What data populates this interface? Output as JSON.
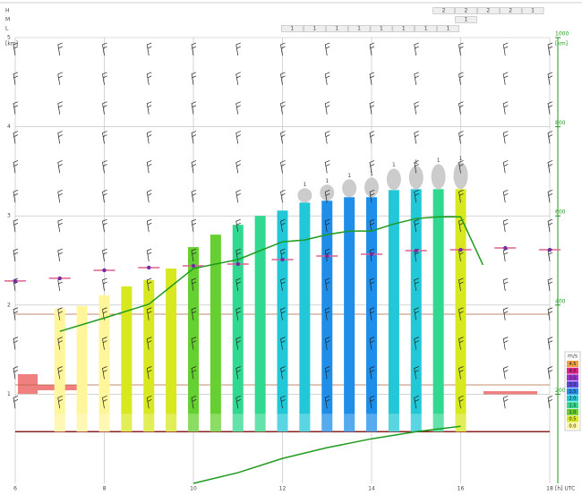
{
  "levels": [
    "H",
    "M",
    "L"
  ],
  "cloud_cover": {
    "H": [
      "2",
      "2",
      "2",
      "2",
      "1"
    ],
    "M": [
      "1"
    ],
    "L": [
      "1",
      "1",
      "1",
      "1",
      "1",
      "1",
      "1",
      "1"
    ]
  },
  "chart_data": {
    "type": "bar",
    "y_label": "[km]",
    "x_label": "[h] UTC",
    "y2_label": "[km]",
    "xlim": [
      6,
      18
    ],
    "xticks": [
      6,
      8,
      10,
      12,
      14,
      16,
      18
    ],
    "ylim": [
      0,
      5
    ],
    "yticks": [
      1,
      2,
      3,
      4,
      5
    ],
    "y2lim": [
      0,
      1000
    ],
    "y2ticks": [
      200,
      400,
      600,
      800,
      1000
    ],
    "ground": 0.58,
    "x": [
      7,
      7.5,
      8,
      8.5,
      9,
      9.5,
      10,
      10.5,
      11,
      11.5,
      12,
      12.5,
      13,
      13.5,
      14,
      14.5,
      15,
      15.5,
      16
    ],
    "values": [
      1.96,
      1.99,
      2.11,
      2.21,
      2.28,
      2.41,
      2.65,
      2.79,
      2.9,
      3.0,
      3.06,
      3.15,
      3.17,
      3.21,
      3.21,
      3.29,
      3.3,
      3.3,
      3.3
    ],
    "climb": [
      0,
      0,
      0,
      0.5,
      0.5,
      0.5,
      1,
      1,
      1.5,
      1.5,
      2,
      2,
      2.5,
      2.5,
      2.5,
      2,
      2,
      1.5,
      0.5
    ],
    "cumulus_labels": [
      "1",
      "1",
      "1",
      "1",
      "1",
      "1",
      "1",
      "1"
    ],
    "boundary_layer": {
      "color": "#7030a0",
      "x": [
        6,
        7,
        8,
        9,
        10,
        11,
        12,
        13,
        14,
        15,
        16,
        17,
        18
      ],
      "values": [
        2.27,
        2.3,
        2.39,
        2.42,
        2.44,
        2.46,
        2.51,
        2.55,
        2.57,
        2.61,
        2.62,
        2.64,
        2.62
      ]
    },
    "lines": [
      {
        "color": "#1e9a1e",
        "axis": "y2",
        "x": [
          7,
          8,
          9,
          10,
          11,
          12,
          12.5,
          13,
          13.5,
          14,
          14.5,
          15,
          15.5,
          16,
          16.5
        ],
        "values": [
          341,
          371,
          402,
          482,
          502,
          542,
          546,
          558,
          566,
          566,
          582,
          594,
          598,
          598,
          490
        ]
      },
      {
        "color": "#1e9a1e",
        "axis": "y2",
        "x": [
          10,
          11,
          12,
          13,
          14,
          15,
          16
        ],
        "values": [
          0,
          24,
          56,
          80,
          100,
          116,
          128
        ]
      }
    ],
    "legend": {
      "title": "m/s",
      "items": [
        {
          "label": 4.5,
          "color": "#f0a040"
        },
        {
          "label": {
            "value": 4,
            "label": "4.0"
          },
          "color": "#e0208a"
        },
        {
          "label": 3.5,
          "color": "#9b30d0"
        },
        {
          "label": {
            "value": 3,
            "label": "3.0"
          },
          "color": "#5a48e0"
        },
        {
          "label": 2.5,
          "color": "#1e8ee8"
        },
        {
          "label": {
            "value": 2,
            "label": "2.0"
          },
          "color": "#22c8d8"
        },
        {
          "label": 1.5,
          "color": "#30d890"
        },
        {
          "label": {
            "value": 1,
            "label": "1.0"
          },
          "color": "#66d030"
        },
        {
          "label": 0.5,
          "color": "#d8e820"
        },
        {
          "label": {
            "value": 0,
            "label": "0.0"
          },
          "color": "#fff59a"
        }
      ]
    }
  }
}
